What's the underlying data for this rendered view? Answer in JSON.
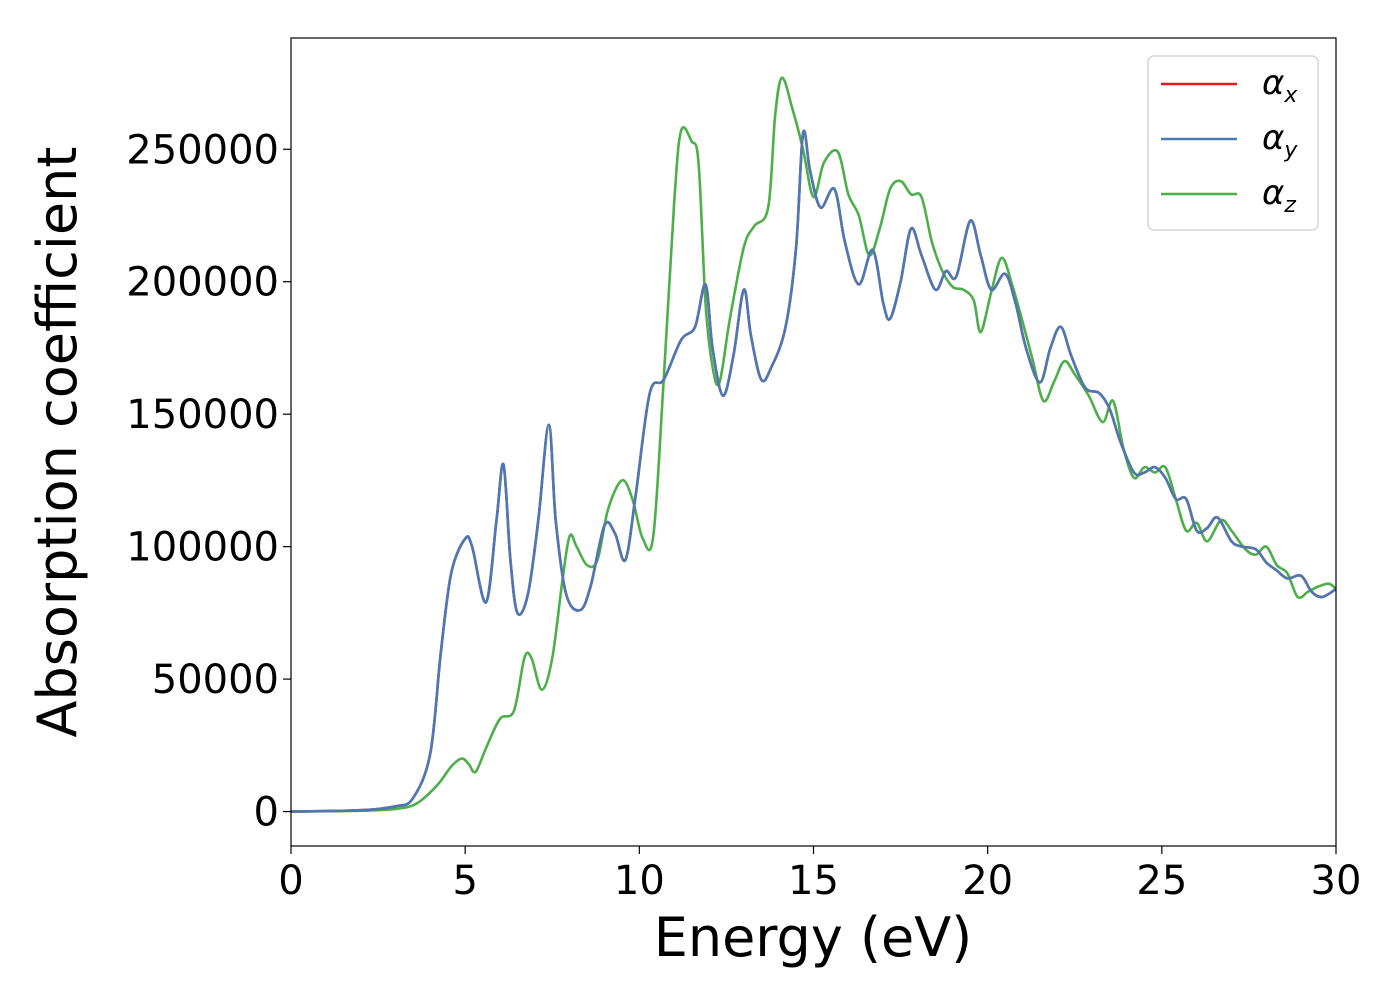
{
  "chart_data": {
    "type": "line",
    "title": "",
    "xlabel": "Energy (eV)",
    "ylabel": "Absorption coefficient",
    "xlim": [
      0,
      30
    ],
    "ylim": [
      -13000,
      292000
    ],
    "x_ticks": [
      0,
      5,
      10,
      15,
      20,
      25,
      30
    ],
    "y_ticks": [
      0,
      50000,
      100000,
      150000,
      200000,
      250000
    ],
    "grid": false,
    "legend_position": "top-right",
    "series": [
      {
        "name": "α",
        "sub": "x",
        "color": "#e41a1c",
        "points": [
          [
            0,
            0
          ],
          [
            2,
            500
          ],
          [
            3,
            2000
          ],
          [
            3.5,
            5000
          ],
          [
            4,
            22000
          ],
          [
            4.3,
            60000
          ],
          [
            4.6,
            90000
          ],
          [
            5,
            103000
          ],
          [
            5.2,
            100000
          ],
          [
            5.6,
            79000
          ],
          [
            5.9,
            110000
          ],
          [
            6.1,
            131000
          ],
          [
            6.3,
            95000
          ],
          [
            6.5,
            75000
          ],
          [
            6.8,
            82000
          ],
          [
            7.1,
            110000
          ],
          [
            7.4,
            146000
          ],
          [
            7.6,
            110000
          ],
          [
            7.9,
            82000
          ],
          [
            8.3,
            76000
          ],
          [
            8.6,
            85000
          ],
          [
            9.0,
            108000
          ],
          [
            9.3,
            105000
          ],
          [
            9.6,
            95000
          ],
          [
            9.9,
            120000
          ],
          [
            10.3,
            158000
          ],
          [
            10.7,
            163000
          ],
          [
            11.2,
            178000
          ],
          [
            11.6,
            183000
          ],
          [
            11.9,
            199000
          ],
          [
            12.1,
            175000
          ],
          [
            12.4,
            157000
          ],
          [
            12.7,
            172000
          ],
          [
            13.0,
            197000
          ],
          [
            13.2,
            180000
          ],
          [
            13.5,
            163000
          ],
          [
            13.8,
            168000
          ],
          [
            14.2,
            183000
          ],
          [
            14.5,
            213000
          ],
          [
            14.7,
            256000
          ],
          [
            14.9,
            242000
          ],
          [
            15.2,
            228000
          ],
          [
            15.6,
            235000
          ],
          [
            15.9,
            215000
          ],
          [
            16.3,
            199000
          ],
          [
            16.7,
            212000
          ],
          [
            17.0,
            192000
          ],
          [
            17.2,
            186000
          ],
          [
            17.5,
            200000
          ],
          [
            17.8,
            220000
          ],
          [
            18.1,
            210000
          ],
          [
            18.5,
            197000
          ],
          [
            18.8,
            204000
          ],
          [
            19.1,
            202000
          ],
          [
            19.5,
            223000
          ],
          [
            19.8,
            210000
          ],
          [
            20.1,
            197000
          ],
          [
            20.5,
            203000
          ],
          [
            20.8,
            192000
          ],
          [
            21.1,
            175000
          ],
          [
            21.5,
            162000
          ],
          [
            21.8,
            175000
          ],
          [
            22.1,
            183000
          ],
          [
            22.4,
            172000
          ],
          [
            22.8,
            160000
          ],
          [
            23.2,
            158000
          ],
          [
            23.5,
            152000
          ],
          [
            23.8,
            140000
          ],
          [
            24.2,
            128000
          ],
          [
            24.5,
            128000
          ],
          [
            24.8,
            130000
          ],
          [
            25.1,
            126000
          ],
          [
            25.4,
            118000
          ],
          [
            25.7,
            118000
          ],
          [
            26.0,
            106000
          ],
          [
            26.3,
            107000
          ],
          [
            26.6,
            111000
          ],
          [
            27.0,
            102000
          ],
          [
            27.3,
            100000
          ],
          [
            27.7,
            99000
          ],
          [
            28.0,
            94000
          ],
          [
            28.3,
            91000
          ],
          [
            28.6,
            88000
          ],
          [
            29.0,
            89000
          ],
          [
            29.3,
            83000
          ],
          [
            29.6,
            81000
          ],
          [
            30.0,
            84000
          ]
        ]
      },
      {
        "name": "α",
        "sub": "y",
        "color": "#4a7ab5",
        "points": [
          [
            0,
            0
          ],
          [
            2,
            500
          ],
          [
            3,
            2000
          ],
          [
            3.5,
            5000
          ],
          [
            4,
            22000
          ],
          [
            4.3,
            60000
          ],
          [
            4.6,
            90000
          ],
          [
            5,
            103000
          ],
          [
            5.2,
            100000
          ],
          [
            5.6,
            79000
          ],
          [
            5.9,
            110000
          ],
          [
            6.1,
            131000
          ],
          [
            6.3,
            95000
          ],
          [
            6.5,
            75000
          ],
          [
            6.8,
            82000
          ],
          [
            7.1,
            110000
          ],
          [
            7.4,
            146000
          ],
          [
            7.6,
            110000
          ],
          [
            7.9,
            82000
          ],
          [
            8.3,
            76000
          ],
          [
            8.6,
            85000
          ],
          [
            9.0,
            108000
          ],
          [
            9.3,
            105000
          ],
          [
            9.6,
            95000
          ],
          [
            9.9,
            120000
          ],
          [
            10.3,
            158000
          ],
          [
            10.7,
            163000
          ],
          [
            11.2,
            178000
          ],
          [
            11.6,
            183000
          ],
          [
            11.9,
            199000
          ],
          [
            12.1,
            175000
          ],
          [
            12.4,
            157000
          ],
          [
            12.7,
            172000
          ],
          [
            13.0,
            197000
          ],
          [
            13.2,
            180000
          ],
          [
            13.5,
            163000
          ],
          [
            13.8,
            168000
          ],
          [
            14.2,
            183000
          ],
          [
            14.5,
            213000
          ],
          [
            14.7,
            256000
          ],
          [
            14.9,
            242000
          ],
          [
            15.2,
            228000
          ],
          [
            15.6,
            235000
          ],
          [
            15.9,
            215000
          ],
          [
            16.3,
            199000
          ],
          [
            16.7,
            212000
          ],
          [
            17.0,
            192000
          ],
          [
            17.2,
            186000
          ],
          [
            17.5,
            200000
          ],
          [
            17.8,
            220000
          ],
          [
            18.1,
            210000
          ],
          [
            18.5,
            197000
          ],
          [
            18.8,
            204000
          ],
          [
            19.1,
            202000
          ],
          [
            19.5,
            223000
          ],
          [
            19.8,
            210000
          ],
          [
            20.1,
            197000
          ],
          [
            20.5,
            203000
          ],
          [
            20.8,
            192000
          ],
          [
            21.1,
            175000
          ],
          [
            21.5,
            162000
          ],
          [
            21.8,
            175000
          ],
          [
            22.1,
            183000
          ],
          [
            22.4,
            172000
          ],
          [
            22.8,
            160000
          ],
          [
            23.2,
            158000
          ],
          [
            23.5,
            152000
          ],
          [
            23.8,
            140000
          ],
          [
            24.2,
            128000
          ],
          [
            24.5,
            128000
          ],
          [
            24.8,
            130000
          ],
          [
            25.1,
            126000
          ],
          [
            25.4,
            118000
          ],
          [
            25.7,
            118000
          ],
          [
            26.0,
            106000
          ],
          [
            26.3,
            107000
          ],
          [
            26.6,
            111000
          ],
          [
            27.0,
            102000
          ],
          [
            27.3,
            100000
          ],
          [
            27.7,
            99000
          ],
          [
            28.0,
            94000
          ],
          [
            28.3,
            91000
          ],
          [
            28.6,
            88000
          ],
          [
            29.0,
            89000
          ],
          [
            29.3,
            83000
          ],
          [
            29.6,
            81000
          ],
          [
            30.0,
            84000
          ]
        ]
      },
      {
        "name": "α",
        "sub": "z",
        "color": "#4daf4a",
        "points": [
          [
            0,
            0
          ],
          [
            2,
            300
          ],
          [
            3,
            1000
          ],
          [
            3.6,
            3000
          ],
          [
            4.2,
            10000
          ],
          [
            4.6,
            17000
          ],
          [
            4.9,
            20000
          ],
          [
            5.1,
            18000
          ],
          [
            5.3,
            15000
          ],
          [
            5.6,
            24000
          ],
          [
            6.0,
            35000
          ],
          [
            6.4,
            38000
          ],
          [
            6.7,
            58000
          ],
          [
            6.9,
            58000
          ],
          [
            7.2,
            46000
          ],
          [
            7.5,
            58000
          ],
          [
            7.8,
            88000
          ],
          [
            8.0,
            104000
          ],
          [
            8.2,
            100000
          ],
          [
            8.5,
            93000
          ],
          [
            8.8,
            95000
          ],
          [
            9.1,
            114000
          ],
          [
            9.5,
            125000
          ],
          [
            9.8,
            118000
          ],
          [
            10.1,
            103000
          ],
          [
            10.4,
            104000
          ],
          [
            10.7,
            163000
          ],
          [
            11.0,
            230000
          ],
          [
            11.2,
            257000
          ],
          [
            11.5,
            253000
          ],
          [
            11.7,
            245000
          ],
          [
            11.9,
            192000
          ],
          [
            12.1,
            168000
          ],
          [
            12.3,
            162000
          ],
          [
            12.6,
            186000
          ],
          [
            13.0,
            213000
          ],
          [
            13.3,
            221000
          ],
          [
            13.7,
            228000
          ],
          [
            13.9,
            263000
          ],
          [
            14.1,
            277000
          ],
          [
            14.4,
            265000
          ],
          [
            14.7,
            250000
          ],
          [
            15.0,
            232000
          ],
          [
            15.3,
            245000
          ],
          [
            15.7,
            249000
          ],
          [
            16.0,
            233000
          ],
          [
            16.3,
            225000
          ],
          [
            16.6,
            210000
          ],
          [
            16.9,
            220000
          ],
          [
            17.2,
            235000
          ],
          [
            17.5,
            238000
          ],
          [
            17.8,
            233000
          ],
          [
            18.1,
            232000
          ],
          [
            18.4,
            215000
          ],
          [
            18.7,
            204000
          ],
          [
            19.0,
            198000
          ],
          [
            19.3,
            197000
          ],
          [
            19.6,
            193000
          ],
          [
            19.8,
            181000
          ],
          [
            20.1,
            196000
          ],
          [
            20.4,
            209000
          ],
          [
            20.7,
            199000
          ],
          [
            21.0,
            185000
          ],
          [
            21.3,
            170000
          ],
          [
            21.6,
            155000
          ],
          [
            21.9,
            162000
          ],
          [
            22.2,
            170000
          ],
          [
            22.5,
            165000
          ],
          [
            22.9,
            157000
          ],
          [
            23.3,
            147000
          ],
          [
            23.6,
            155000
          ],
          [
            23.9,
            137000
          ],
          [
            24.2,
            126000
          ],
          [
            24.5,
            130000
          ],
          [
            24.8,
            128000
          ],
          [
            25.1,
            130000
          ],
          [
            25.4,
            118000
          ],
          [
            25.7,
            106000
          ],
          [
            26.0,
            109000
          ],
          [
            26.3,
            102000
          ],
          [
            26.7,
            110000
          ],
          [
            27.0,
            106000
          ],
          [
            27.4,
            99000
          ],
          [
            27.7,
            97000
          ],
          [
            28.0,
            100000
          ],
          [
            28.3,
            93000
          ],
          [
            28.6,
            90000
          ],
          [
            28.9,
            81000
          ],
          [
            29.2,
            83000
          ],
          [
            29.5,
            85000
          ],
          [
            29.8,
            86000
          ],
          [
            30.0,
            84000
          ]
        ]
      }
    ]
  }
}
